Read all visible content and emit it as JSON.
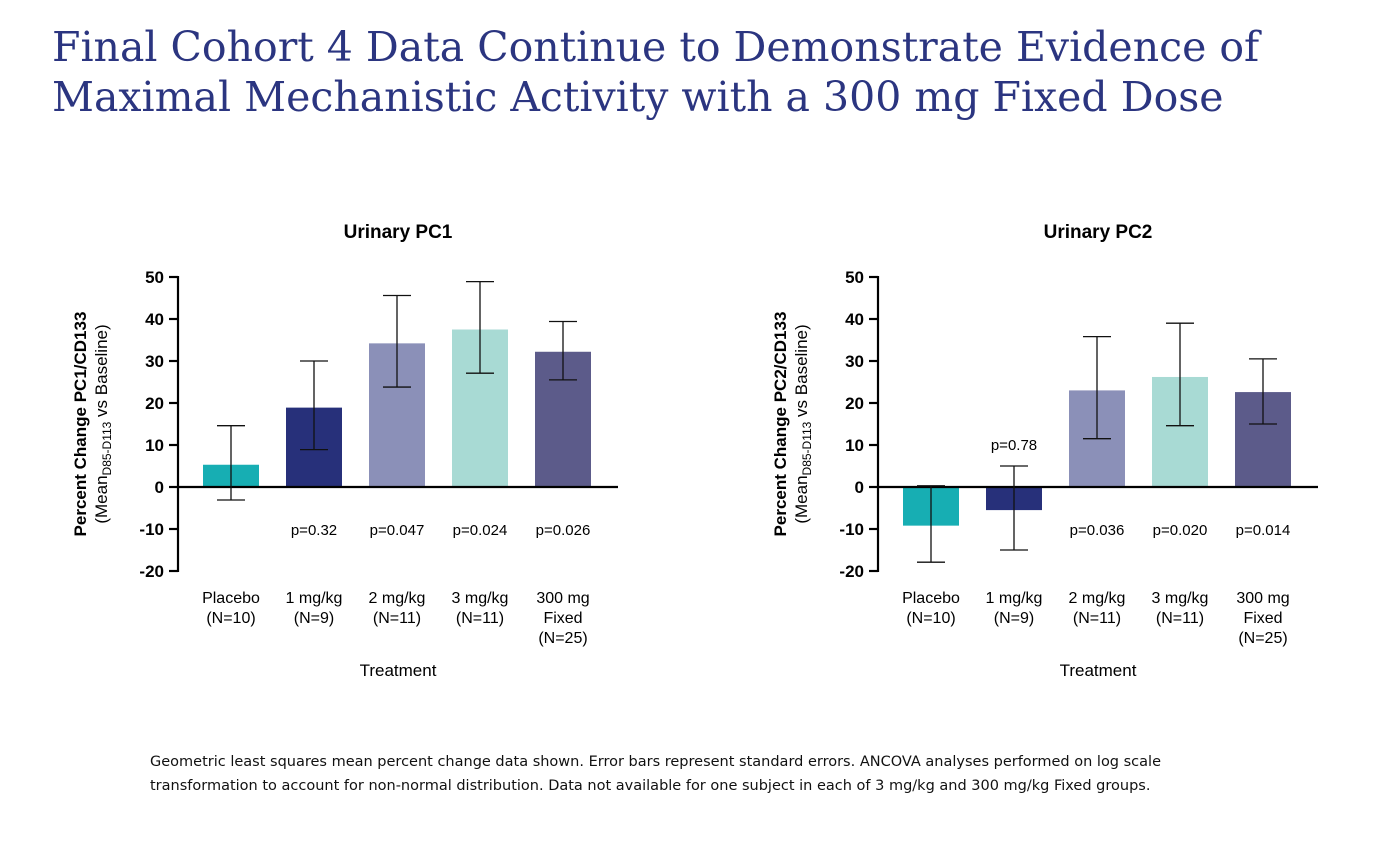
{
  "slide": {
    "title_line1": "Final Cohort 4 Data Continue to Demonstrate Evidence of",
    "title_line2": "Maximal Mechanistic Activity with a 300 mg Fixed Dose"
  },
  "footnote": {
    "line1": "Geometric least squares mean percent change data shown. Error bars represent standard errors. ANCOVA analyses performed on log scale",
    "line2": "transformation to account for non-normal distribution. Data not available for one subject in each of 3 mg/kg and 300 mg/kg Fixed groups."
  },
  "colors": [
    "#17aeb3",
    "#27307a",
    "#8b90b8",
    "#a8dad4",
    "#5c5b8a"
  ],
  "chart_data": [
    {
      "type": "bar",
      "title": "Urinary PC1",
      "ylabel_line1": "Percent Change PC1/CD133",
      "ylabel_line2_prefix": "(Mean",
      "ylabel_line2_sub": "D85-D113",
      "ylabel_line2_suffix": " vs Baseline)",
      "xlabel": "Treatment",
      "ylim": [
        -20,
        50
      ],
      "yticks": [
        -20,
        -10,
        0,
        10,
        20,
        30,
        40,
        50
      ],
      "categories": [
        [
          "Placebo",
          "(N=10)"
        ],
        [
          "1 mg/kg",
          "(N=9)"
        ],
        [
          "2 mg/kg",
          "(N=11)"
        ],
        [
          "3 mg/kg",
          "(N=11)"
        ],
        [
          "300 mg",
          "Fixed",
          "(N=25)"
        ]
      ],
      "values": [
        5.3,
        18.9,
        34.2,
        37.5,
        32.2
      ],
      "error_low": [
        -3.1,
        8.9,
        23.8,
        27.1,
        25.5
      ],
      "error_high": [
        14.6,
        30.0,
        45.6,
        48.9,
        39.4
      ],
      "pvalues": [
        "",
        "p=0.32",
        "p=0.047",
        "p=0.024",
        "p=0.026"
      ],
      "pvalue_pos": [
        "below",
        "below",
        "below",
        "below",
        "below"
      ]
    },
    {
      "type": "bar",
      "title": "Urinary PC2",
      "ylabel_line1": "Percent Change PC2/CD133",
      "ylabel_line2_prefix": "(Mean",
      "ylabel_line2_sub": "D85-D113",
      "ylabel_line2_suffix": " vs Baseline)",
      "xlabel": "Treatment",
      "ylim": [
        -20,
        50
      ],
      "yticks": [
        -20,
        -10,
        0,
        10,
        20,
        30,
        40,
        50
      ],
      "categories": [
        [
          "Placebo",
          "(N=10)"
        ],
        [
          "1 mg/kg",
          "(N=9)"
        ],
        [
          "2 mg/kg",
          "(N=11)"
        ],
        [
          "3 mg/kg",
          "(N=11)"
        ],
        [
          "300 mg",
          "Fixed",
          "(N=25)"
        ]
      ],
      "values": [
        -9.2,
        -5.5,
        23.0,
        26.2,
        22.6
      ],
      "error_low": [
        -17.9,
        -15.0,
        11.5,
        14.6,
        15.0
      ],
      "error_high": [
        0.3,
        5.0,
        35.8,
        39.0,
        30.5
      ],
      "pvalues": [
        "",
        "p=0.78",
        "p=0.036",
        "p=0.020",
        "p=0.014"
      ],
      "pvalue_pos": [
        "below",
        "above",
        "below",
        "below",
        "below"
      ]
    }
  ]
}
